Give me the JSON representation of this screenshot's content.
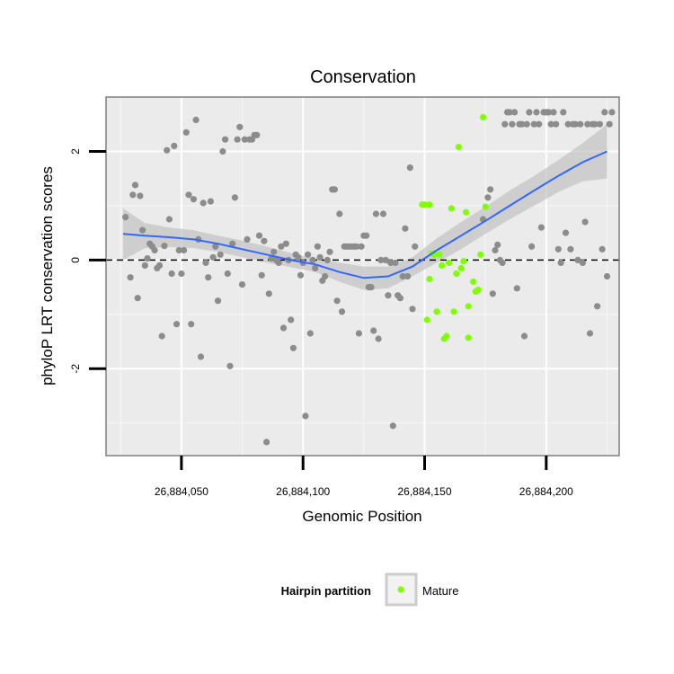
{
  "chart_data": {
    "type": "scatter",
    "title": "Conservation",
    "xlabel": "Genomic Position",
    "ylabel": "phyloP LRT conservation scores",
    "xlim": [
      26884019,
      26884230
    ],
    "ylim": [
      -3.6,
      3.0
    ],
    "x_ticks": [
      {
        "value": 26884050,
        "label": "26,884,050"
      },
      {
        "value": 26884100,
        "label": "26,884,100"
      },
      {
        "value": 26884150,
        "label": "26,884,150"
      },
      {
        "value": 26884200,
        "label": "26,884,200"
      }
    ],
    "y_ticks": [
      {
        "value": -2,
        "label": "-2"
      },
      {
        "value": 0,
        "label": "0"
      },
      {
        "value": 2,
        "label": "2"
      }
    ],
    "reference_line": {
      "y": 0,
      "style": "dashed",
      "color": "#000000"
    },
    "legend": {
      "title": "Hairpin partition",
      "entries": [
        {
          "label": "Mature",
          "color": "#80ff00"
        }
      ]
    },
    "colors": {
      "background": "#ebebeb",
      "grid": "#ffffff",
      "other_points": "#8c8c8c",
      "mature_points": "#80ff00",
      "smooth_line": "#3366ff",
      "ribbon": "#bfbfbf"
    },
    "series": [
      {
        "name": "Other",
        "color": "#8c8c8c",
        "points": [
          [
            26884027,
            0.79
          ],
          [
            26884029,
            -0.32
          ],
          [
            26884030,
            1.2
          ],
          [
            26884031,
            1.38
          ],
          [
            26884032,
            -0.7
          ],
          [
            26884033,
            1.18
          ],
          [
            26884034,
            0.55
          ],
          [
            26884035,
            -0.1
          ],
          [
            26884036,
            0.03
          ],
          [
            26884037,
            0.3
          ],
          [
            26884038,
            0.25
          ],
          [
            26884039,
            0.18
          ],
          [
            26884040,
            -0.15
          ],
          [
            26884041,
            -0.1
          ],
          [
            26884042,
            -1.4
          ],
          [
            26884043,
            0.26
          ],
          [
            26884044,
            2.02
          ],
          [
            26884045,
            0.75
          ],
          [
            26884046,
            -0.25
          ],
          [
            26884047,
            2.1
          ],
          [
            26884048,
            -1.18
          ],
          [
            26884049,
            0.18
          ],
          [
            26884050,
            -0.25
          ],
          [
            26884051,
            0.18
          ],
          [
            26884052,
            2.35
          ],
          [
            26884053,
            1.2
          ],
          [
            26884054,
            -1.18
          ],
          [
            26884055,
            1.12
          ],
          [
            26884056,
            2.58
          ],
          [
            26884057,
            0.38
          ],
          [
            26884058,
            -1.78
          ],
          [
            26884059,
            1.05
          ],
          [
            26884060,
            -0.05
          ],
          [
            26884061,
            -0.32
          ],
          [
            26884062,
            1.08
          ],
          [
            26884063,
            0.05
          ],
          [
            26884064,
            0.25
          ],
          [
            26884065,
            -0.75
          ],
          [
            26884066,
            0.1
          ],
          [
            26884067,
            2.0
          ],
          [
            26884068,
            2.22
          ],
          [
            26884069,
            -0.25
          ],
          [
            26884070,
            -1.95
          ],
          [
            26884071,
            0.3
          ],
          [
            26884072,
            1.15
          ],
          [
            26884073,
            2.22
          ],
          [
            26884074,
            2.45
          ],
          [
            26884075,
            -0.45
          ],
          [
            26884076,
            2.22
          ],
          [
            26884077,
            0.38
          ],
          [
            26884078,
            2.22
          ],
          [
            26884079,
            2.22
          ],
          [
            26884080,
            2.3
          ],
          [
            26884081,
            2.3
          ],
          [
            26884082,
            0.45
          ],
          [
            26884083,
            -0.28
          ],
          [
            26884084,
            0.35
          ],
          [
            26884085,
            -3.35
          ],
          [
            26884086,
            -0.62
          ],
          [
            26884087,
            0.03
          ],
          [
            26884088,
            0.15
          ],
          [
            26884089,
            0.0
          ],
          [
            26884090,
            -0.05
          ],
          [
            26884091,
            0.25
          ],
          [
            26884092,
            -1.25
          ],
          [
            26884093,
            0.3
          ],
          [
            26884094,
            0.0
          ],
          [
            26884095,
            -1.1
          ],
          [
            26884096,
            -1.62
          ],
          [
            26884097,
            0.1
          ],
          [
            26884098,
            0.05
          ],
          [
            26884099,
            -0.28
          ],
          [
            26884100,
            -0.05
          ],
          [
            26884101,
            -2.87
          ],
          [
            26884102,
            0.1
          ],
          [
            26884103,
            -1.35
          ],
          [
            26884104,
            0.0
          ],
          [
            26884105,
            -0.15
          ],
          [
            26884106,
            0.25
          ],
          [
            26884107,
            0.05
          ],
          [
            26884108,
            -0.38
          ],
          [
            26884109,
            -0.3
          ],
          [
            26884110,
            0.0
          ],
          [
            26884111,
            0.15
          ],
          [
            26884112,
            1.3
          ],
          [
            26884113,
            1.3
          ],
          [
            26884114,
            -0.75
          ],
          [
            26884115,
            0.85
          ],
          [
            26884116,
            -0.95
          ],
          [
            26884117,
            0.25
          ],
          [
            26884118,
            0.25
          ],
          [
            26884119,
            0.25
          ],
          [
            26884120,
            0.25
          ],
          [
            26884121,
            0.25
          ],
          [
            26884122,
            0.25
          ],
          [
            26884123,
            -1.35
          ],
          [
            26884124,
            0.25
          ],
          [
            26884125,
            0.45
          ],
          [
            26884126,
            0.45
          ],
          [
            26884127,
            -0.5
          ],
          [
            26884128,
            -0.5
          ],
          [
            26884129,
            -1.3
          ],
          [
            26884130,
            0.85
          ],
          [
            26884131,
            -1.45
          ],
          [
            26884132,
            0.0
          ],
          [
            26884133,
            0.85
          ],
          [
            26884134,
            0.0
          ],
          [
            26884135,
            -0.65
          ],
          [
            26884136,
            -0.05
          ],
          [
            26884137,
            -3.05
          ],
          [
            26884138,
            -0.05
          ],
          [
            26884139,
            -0.65
          ],
          [
            26884140,
            -0.7
          ],
          [
            26884141,
            -0.3
          ],
          [
            26884142,
            0.58
          ],
          [
            26884143,
            -0.3
          ],
          [
            26884144,
            1.7
          ],
          [
            26884145,
            -0.9
          ],
          [
            26884146,
            0.25
          ]
        ]
      },
      {
        "name": "Mature",
        "color": "#80ff00",
        "points": [
          [
            26884149,
            1.02
          ],
          [
            26884150,
            1.02
          ],
          [
            26884151,
            -1.1
          ],
          [
            26884152,
            1.02
          ],
          [
            26884152,
            -0.35
          ],
          [
            26884153,
            0.12
          ],
          [
            26884154,
            0.1
          ],
          [
            26884155,
            -0.95
          ],
          [
            26884156,
            0.1
          ],
          [
            26884157,
            -0.1
          ],
          [
            26884158,
            -1.45
          ],
          [
            26884159,
            -1.4
          ],
          [
            26884160,
            -0.05
          ],
          [
            26884161,
            0.95
          ],
          [
            26884162,
            -0.95
          ],
          [
            26884163,
            -0.25
          ],
          [
            26884164,
            2.08
          ],
          [
            26884165,
            -0.15
          ],
          [
            26884166,
            -0.02
          ],
          [
            26884167,
            0.88
          ],
          [
            26884168,
            -0.85
          ],
          [
            26884168,
            -1.43
          ],
          [
            26884170,
            -0.4
          ],
          [
            26884171,
            -0.58
          ],
          [
            26884172,
            -0.55
          ],
          [
            26884173,
            0.1
          ],
          [
            26884174,
            2.63
          ],
          [
            26884175,
            0.98
          ]
        ]
      },
      {
        "name": "Other",
        "color": "#8c8c8c",
        "points": [
          [
            26884174,
            0.75
          ],
          [
            26884176,
            1.15
          ],
          [
            26884177,
            1.3
          ],
          [
            26884178,
            -0.62
          ],
          [
            26884179,
            0.18
          ],
          [
            26884180,
            0.28
          ],
          [
            26884181,
            0.0
          ],
          [
            26884182,
            -0.05
          ],
          [
            26884183,
            2.5
          ],
          [
            26884184,
            2.72
          ],
          [
            26884185,
            2.72
          ],
          [
            26884186,
            2.5
          ],
          [
            26884187,
            2.72
          ],
          [
            26884188,
            -0.52
          ],
          [
            26884189,
            2.5
          ],
          [
            26884190,
            2.5
          ],
          [
            26884191,
            -1.4
          ],
          [
            26884192,
            2.5
          ],
          [
            26884193,
            2.72
          ],
          [
            26884194,
            0.25
          ],
          [
            26884195,
            2.5
          ],
          [
            26884196,
            2.72
          ],
          [
            26884197,
            2.5
          ],
          [
            26884198,
            0.6
          ],
          [
            26884199,
            2.72
          ],
          [
            26884200,
            2.72
          ],
          [
            26884201,
            2.72
          ],
          [
            26884202,
            2.5
          ],
          [
            26884203,
            2.72
          ],
          [
            26884204,
            2.5
          ],
          [
            26884205,
            0.2
          ],
          [
            26884206,
            -0.05
          ],
          [
            26884207,
            2.72
          ],
          [
            26884208,
            0.5
          ],
          [
            26884209,
            2.5
          ],
          [
            26884210,
            0.2
          ],
          [
            26884211,
            2.5
          ],
          [
            26884212,
            2.5
          ],
          [
            26884213,
            0.0
          ],
          [
            26884214,
            2.5
          ],
          [
            26884215,
            -0.05
          ],
          [
            26884216,
            0.7
          ],
          [
            26884217,
            2.5
          ],
          [
            26884218,
            -1.35
          ],
          [
            26884219,
            2.5
          ],
          [
            26884220,
            2.5
          ],
          [
            26884221,
            -0.85
          ],
          [
            26884222,
            2.5
          ],
          [
            26884223,
            0.2
          ],
          [
            26884224,
            2.72
          ],
          [
            26884225,
            -0.3
          ],
          [
            26884226,
            2.5
          ],
          [
            26884227,
            2.72
          ]
        ]
      }
    ],
    "smooth": {
      "name": "LOESS fit",
      "color": "#3366ff",
      "x": [
        26884026,
        26884035,
        26884045,
        26884055,
        26884065,
        26884075,
        26884085,
        26884095,
        26884105,
        26884115,
        26884125,
        26884135,
        26884145,
        26884155,
        26884165,
        26884175,
        26884185,
        26884195,
        26884205,
        26884215,
        26884225
      ],
      "y": [
        0.48,
        0.45,
        0.42,
        0.38,
        0.3,
        0.2,
        0.1,
        0.0,
        -0.08,
        -0.22,
        -0.33,
        -0.3,
        -0.12,
        0.18,
        0.45,
        0.72,
        1.0,
        1.28,
        1.55,
        1.8,
        2.0
      ],
      "upper": [
        0.95,
        0.68,
        0.6,
        0.55,
        0.45,
        0.36,
        0.25,
        0.13,
        0.03,
        -0.05,
        -0.12,
        -0.12,
        0.05,
        0.4,
        0.7,
        0.98,
        1.28,
        1.55,
        1.84,
        2.15,
        2.5
      ],
      "lower": [
        0.0,
        0.22,
        0.24,
        0.22,
        0.15,
        0.05,
        -0.05,
        -0.13,
        -0.22,
        -0.4,
        -0.55,
        -0.52,
        -0.3,
        -0.05,
        0.2,
        0.48,
        0.75,
        1.0,
        1.25,
        1.45,
        1.5
      ]
    }
  }
}
